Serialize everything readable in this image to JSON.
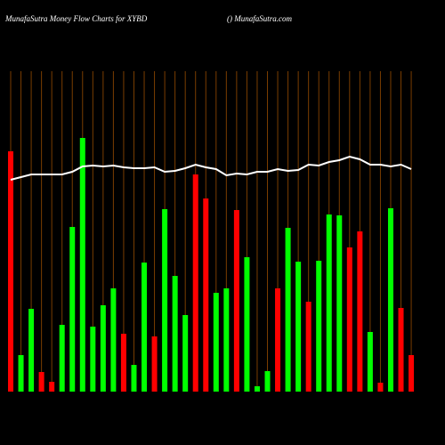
{
  "chart_data": {
    "type": "bar",
    "title": "MunafaSutra  Money Flow  Charts for XYBD",
    "subtitle": "() MunafaSutra.com",
    "ylim": [
      0,
      360
    ],
    "grid": true,
    "grid_color": "#7a3d00",
    "series": [
      {
        "name": "Money Flow",
        "type": "bar",
        "values": [
          270,
          41,
          93,
          22,
          11,
          75,
          185,
          285,
          73,
          97,
          116,
          65,
          30,
          145,
          62,
          205,
          130,
          86,
          244,
          217,
          111,
          116,
          204,
          151,
          6,
          23,
          116,
          184,
          146,
          101,
          147,
          199,
          198,
          162,
          180,
          67,
          10,
          206,
          94,
          41
        ],
        "colors": [
          "#ff0000",
          "#00ff00",
          "#00ff00",
          "#ff0000",
          "#ff0000",
          "#00ff00",
          "#00ff00",
          "#00ff00",
          "#00ff00",
          "#00ff00",
          "#00ff00",
          "#ff0000",
          "#00ff00",
          "#00ff00",
          "#ff0000",
          "#00ff00",
          "#00ff00",
          "#00ff00",
          "#ff0000",
          "#ff0000",
          "#00ff00",
          "#00ff00",
          "#ff0000",
          "#00ff00",
          "#00ff00",
          "#00ff00",
          "#ff0000",
          "#00ff00",
          "#00ff00",
          "#ff0000",
          "#00ff00",
          "#00ff00",
          "#00ff00",
          "#ff0000",
          "#ff0000",
          "#00ff00",
          "#ff0000",
          "#00ff00",
          "#ff0000",
          "#ff0000"
        ]
      },
      {
        "name": "Price",
        "type": "line",
        "color": "#ffffff",
        "values": [
          238,
          241,
          244,
          244,
          244,
          244,
          247,
          253,
          254,
          253,
          254,
          252,
          251,
          251,
          252,
          247,
          248,
          251,
          255,
          252,
          250,
          243,
          245,
          244,
          247,
          247,
          250,
          248,
          249,
          255,
          254,
          258,
          260,
          264,
          261,
          255,
          255,
          253,
          255,
          250
        ]
      }
    ]
  }
}
